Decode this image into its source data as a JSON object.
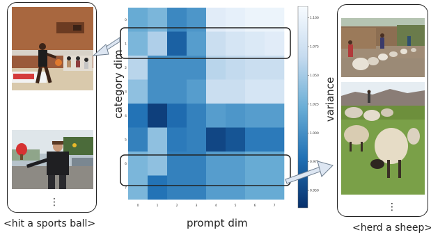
{
  "captions": {
    "left": "<hit a sports ball>",
    "right": "<herd a sheep>"
  },
  "ellipsis": "⋮",
  "photos": {
    "left_top": "basketball player dribbling a ball",
    "left_bottom": "man playing table tennis",
    "right_top": "flock of sheep on a road",
    "right_bottom": "sheep grazing on a grassy hillside"
  },
  "chart_data": {
    "type": "heatmap",
    "xlabel": "prompt dim",
    "ylabel": "category dim",
    "colorbar_label": "variance",
    "x_ticks": [
      "0",
      "1",
      "2",
      "3",
      "4",
      "5",
      "6",
      "7"
    ],
    "y_ticks": [
      "0",
      "1",
      "2",
      "3",
      "4",
      "5",
      "6",
      "7"
    ],
    "colorbar_ticks": [
      "1.100",
      "1.075",
      "1.050",
      "1.025",
      "1.000",
      "0.975",
      "0.950"
    ],
    "colorbar_range": [
      0.935,
      1.11
    ],
    "colormap": [
      "#08306b",
      "#2171b5",
      "#6baed6",
      "#c6dbef",
      "#f7fbff"
    ],
    "values": [
      [
        1.02,
        1.03,
        0.995,
        1.005,
        1.09,
        1.095,
        1.1,
        1.1
      ],
      [
        1.03,
        1.055,
        0.968,
        1.01,
        1.07,
        1.08,
        1.085,
        1.09
      ],
      [
        1.06,
        1.0,
        1.0,
        1.0,
        1.06,
        1.065,
        1.07,
        1.07
      ],
      [
        1.04,
        1.0,
        1.0,
        1.01,
        1.07,
        1.07,
        1.08,
        1.08
      ],
      [
        0.98,
        0.945,
        0.975,
        0.99,
        1.01,
        1.005,
        1.01,
        1.01
      ],
      [
        0.99,
        1.04,
        0.985,
        0.99,
        0.95,
        0.96,
        0.985,
        0.985
      ],
      [
        1.03,
        1.04,
        0.99,
        0.99,
        1.01,
        1.01,
        1.02,
        1.02
      ],
      [
        1.03,
        0.98,
        0.99,
        0.99,
        1.01,
        1.01,
        1.02,
        1.02
      ]
    ]
  }
}
